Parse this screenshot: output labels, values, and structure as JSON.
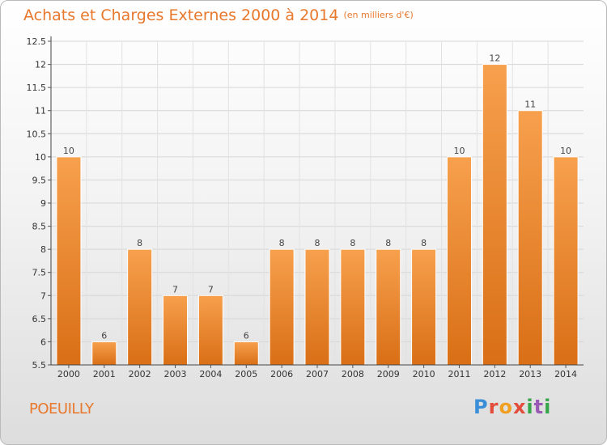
{
  "title": "Achats et Charges Externes 2000 à 2014",
  "unit": "(en milliers d'€)",
  "commune": "POEUILLY",
  "logo": "Proxiti",
  "colors": {
    "bar_light": "#f7a04d",
    "bar_dark": "#d96f16",
    "text_accent": "#e8782c"
  },
  "chart_data": {
    "type": "bar",
    "categories": [
      "2000",
      "2001",
      "2002",
      "2003",
      "2004",
      "2005",
      "2006",
      "2007",
      "2008",
      "2009",
      "2010",
      "2011",
      "2012",
      "2013",
      "2014"
    ],
    "values": [
      10,
      6,
      8,
      7,
      7,
      6,
      8,
      8,
      8,
      8,
      8,
      10,
      12,
      11,
      10
    ],
    "ylim": [
      5.5,
      12.5
    ],
    "yticks": [
      "5.5",
      "6",
      "6.5",
      "7",
      "7.5",
      "8",
      "8.5",
      "9",
      "9.5",
      "10",
      "10.5",
      "11",
      "11.5",
      "12",
      "12.5"
    ],
    "grid": true,
    "xlabel": "",
    "ylabel": ""
  }
}
